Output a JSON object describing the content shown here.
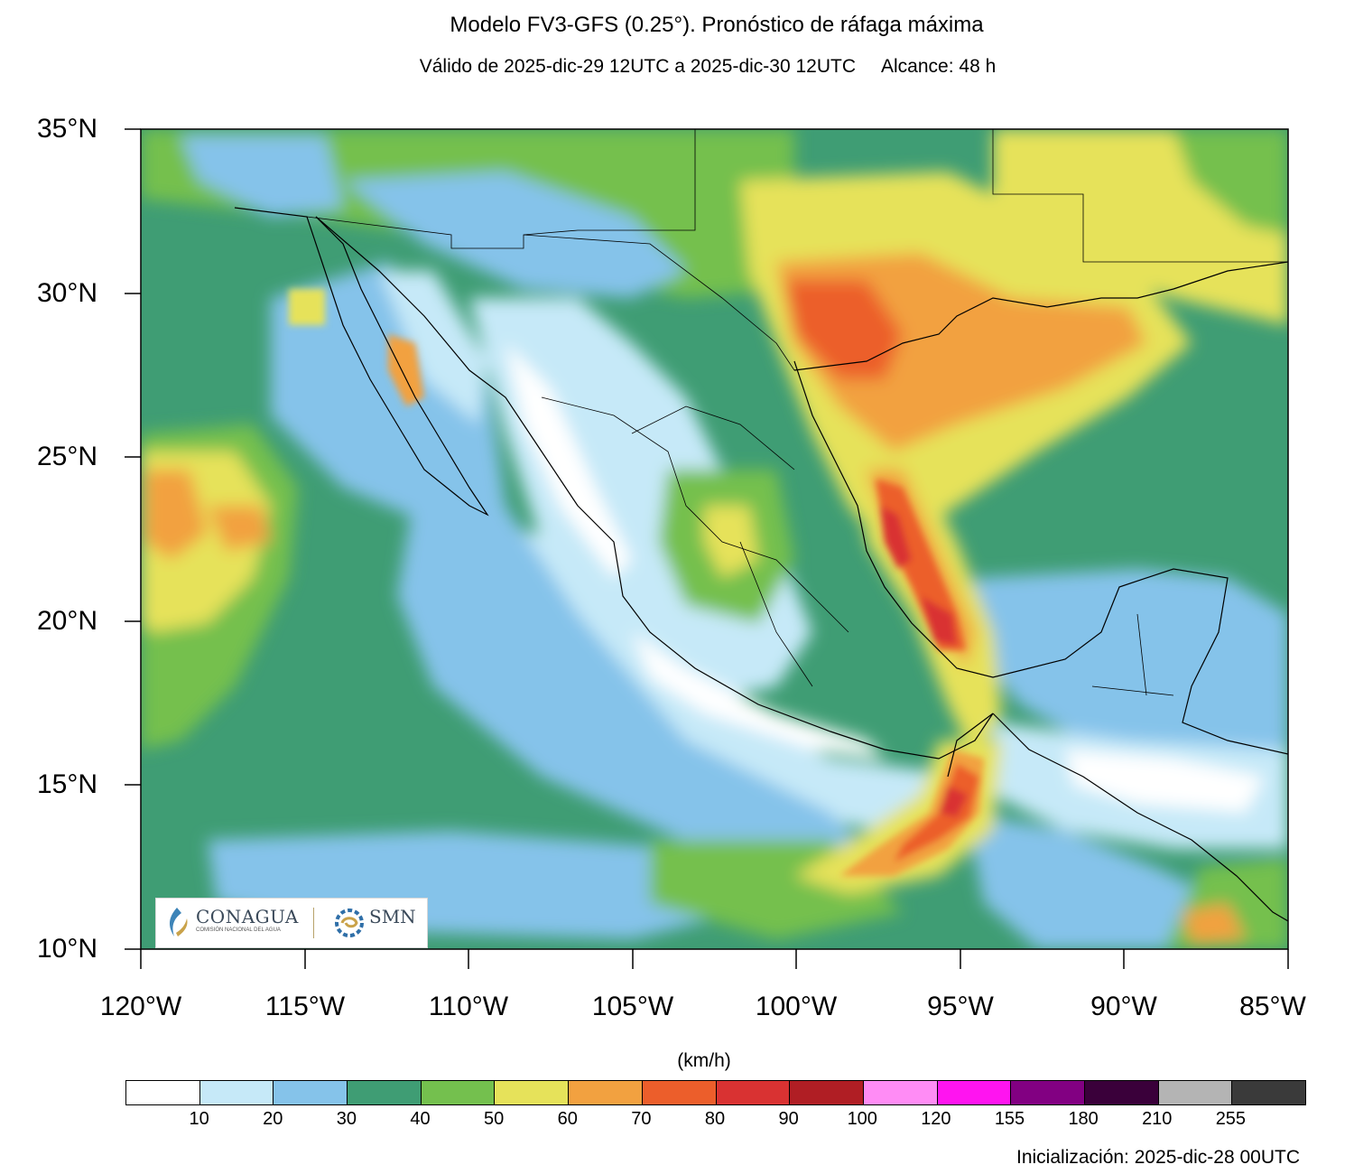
{
  "title": "Modelo FV3-GFS (0.25°). Pronóstico de ráfaga máxima",
  "subtitle": "Válido de 2025-dic-29 12UTC a 2025-dic-30 12UTC     Alcance: 48 h",
  "units": "(km/h)",
  "footer": "Inicialización: 2025-dic-28 00UTC",
  "lat_labels": [
    "35°N",
    "30°N",
    "25°N",
    "20°N",
    "15°N",
    "10°N"
  ],
  "lon_labels": [
    "120°W",
    "115°W",
    "110°W",
    "105°W",
    "100°W",
    "95°W",
    "90°W",
    "85°W"
  ],
  "colorbar": {
    "ticks": [
      "10",
      "20",
      "30",
      "40",
      "50",
      "60",
      "70",
      "80",
      "90",
      "100",
      "120",
      "155",
      "180",
      "210",
      "255"
    ],
    "colors": [
      "#ffffff",
      "#c6e9f8",
      "#85c3ea",
      "#3f9d74",
      "#74c04e",
      "#e6e25a",
      "#f2a140",
      "#ec5e2b",
      "#d93232",
      "#b01e24",
      "#ff8cf5",
      "#ff14f0",
      "#820082",
      "#3a003a",
      "#b4b4b4",
      "#3a3a3a"
    ]
  },
  "logos": {
    "conagua": "CONAGUA",
    "conagua_sub": "COMISIÓN NACIONAL DEL AGUA",
    "smn": "SMN"
  },
  "map": {
    "extent": {
      "lon_min": -120,
      "lon_max": -85,
      "lat_min": 10,
      "lat_max": 35
    }
  }
}
